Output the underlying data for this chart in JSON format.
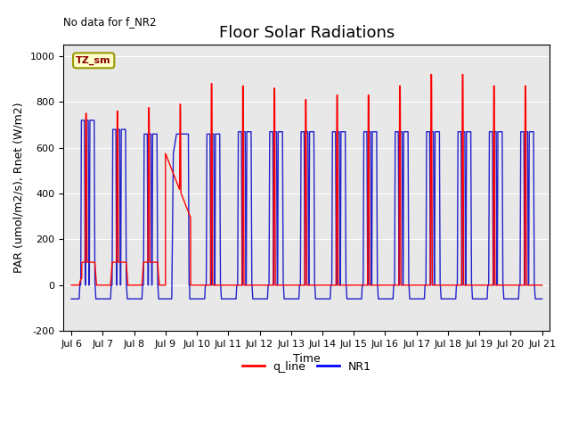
{
  "title": "Floor Solar Radiations",
  "subtitle": "No data for f_NR2",
  "xlabel": "Time",
  "ylabel": "PAR (umol/m2/s), Rnet (W/m2)",
  "ylim": [
    -200,
    1050
  ],
  "xlim_start": 5.75,
  "xlim_end": 21.25,
  "xtick_labels": [
    "Jul 6",
    "Jul 7",
    "Jul 8",
    "Jul 9",
    "Jul 10",
    "Jul 11",
    "Jul 12",
    "Jul 13",
    "Jul 14",
    "Jul 15",
    "Jul 16",
    "Jul 17",
    "Jul 18",
    "Jul 19",
    "Jul 20",
    "Jul 21"
  ],
  "xtick_positions": [
    6,
    7,
    8,
    9,
    10,
    11,
    12,
    13,
    14,
    15,
    16,
    17,
    18,
    19,
    20,
    21
  ],
  "ytick_labels": [
    "-200",
    "0",
    "200",
    "400",
    "600",
    "800",
    "1000"
  ],
  "ytick_positions": [
    -200,
    0,
    200,
    400,
    600,
    800,
    1000
  ],
  "legend_labels": [
    "q_line",
    "NR1"
  ],
  "legend_colors": [
    "red",
    "blue"
  ],
  "zone_label": "TZ_sm",
  "bg_color": "#e8e8e8",
  "line_color_red": "#ff0000",
  "line_color_blue": "#2222cc",
  "title_fontsize": 13,
  "label_fontsize": 9,
  "tick_fontsize": 8
}
